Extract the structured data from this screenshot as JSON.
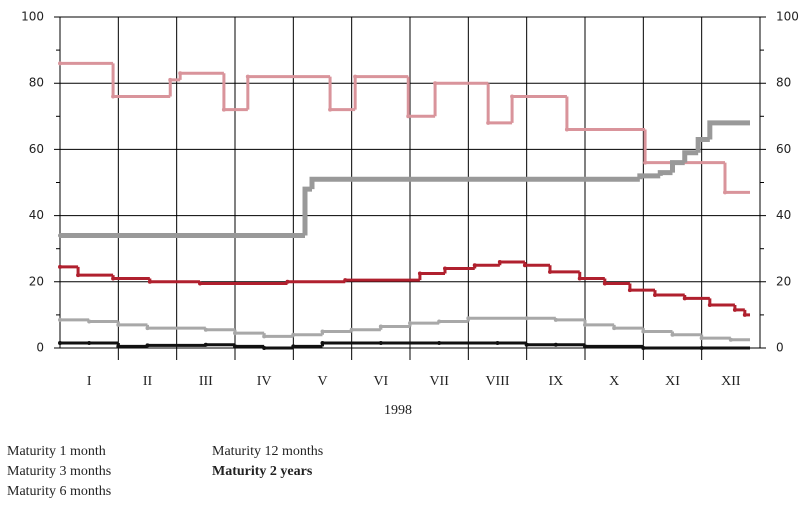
{
  "chart_data": {
    "type": "step",
    "xlabel": "1998",
    "xlim": [
      0,
      12
    ],
    "xticks": [
      {
        "value": 0.5,
        "label": "I"
      },
      {
        "value": 1.5,
        "label": "II"
      },
      {
        "value": 2.5,
        "label": "III"
      },
      {
        "value": 3.5,
        "label": "IV"
      },
      {
        "value": 4.5,
        "label": "V"
      },
      {
        "value": 5.5,
        "label": "VI"
      },
      {
        "value": 6.5,
        "label": "VII"
      },
      {
        "value": 7.5,
        "label": "VIII"
      },
      {
        "value": 8.5,
        "label": "IX"
      },
      {
        "value": 9.5,
        "label": "X"
      },
      {
        "value": 10.5,
        "label": "XI"
      },
      {
        "value": 11.5,
        "label": "XII"
      }
    ],
    "ylim": [
      0,
      100
    ],
    "yticks": [
      0,
      20,
      40,
      60,
      80,
      100
    ],
    "grid": true,
    "series": [
      {
        "name": "Maturity 1 month",
        "color": "#111111",
        "x": [
          0,
          0.5,
          1,
          1.5,
          2.5,
          3,
          3.5,
          4,
          4.5,
          5.5,
          6.5,
          7.5,
          8,
          8.5,
          9,
          10,
          11
        ],
        "values": [
          1.5,
          1.5,
          0.5,
          0.8,
          1,
          0.5,
          0,
          0.5,
          1.5,
          1.5,
          1.5,
          1.5,
          1,
          1,
          0.5,
          0,
          0
        ]
      },
      {
        "name": "Maturity 3 months",
        "color": "#a8a8a8",
        "x": [
          0,
          0.5,
          1,
          1.5,
          2.5,
          3,
          3.5,
          4,
          4.5,
          5,
          5.5,
          6,
          6.5,
          7,
          8,
          8.5,
          9,
          9.5,
          10,
          10.5,
          11,
          11.5
        ],
        "values": [
          8.5,
          8,
          7,
          6,
          5.5,
          4.5,
          3.5,
          4,
          5,
          5.5,
          6.5,
          7.5,
          8,
          9,
          9,
          8.5,
          7,
          6,
          5,
          4,
          3,
          2.5
        ]
      },
      {
        "name": "Maturity 6 months",
        "color": "#b0202e",
        "x": [
          0,
          0.31,
          0.91,
          1.54,
          2.4,
          3.9,
          4.89,
          6.17,
          6.6,
          7.11,
          7.54,
          7.97,
          8.4,
          8.91,
          9.34,
          9.77,
          10.2,
          10.71,
          11.14,
          11.57,
          11.74
        ],
        "values": [
          24.5,
          22,
          21,
          20,
          19.5,
          20,
          20.5,
          22.5,
          24,
          25,
          26,
          25,
          23,
          21,
          19.5,
          17.5,
          16,
          15,
          13,
          11.5,
          10
        ]
      },
      {
        "name": "Maturity 12 months",
        "color": "#d9949b",
        "x": [
          0,
          0.91,
          1.89,
          2.06,
          2.81,
          3.22,
          4.63,
          5.06,
          5.97,
          6.43,
          7.34,
          7.75,
          8.69,
          10.03,
          11.4
        ],
        "values": [
          86,
          76,
          81,
          83,
          72,
          82,
          72,
          82,
          70,
          80,
          68,
          76,
          66,
          56,
          47
        ]
      },
      {
        "name": "Maturity 2 years",
        "color": "#999999",
        "x": [
          0,
          4.2,
          4.32,
          9.94,
          10.29,
          10.5,
          10.71,
          10.94,
          11.14
        ],
        "values": [
          34,
          48,
          51,
          52,
          53,
          56,
          59,
          63,
          68
        ]
      }
    ]
  }
}
